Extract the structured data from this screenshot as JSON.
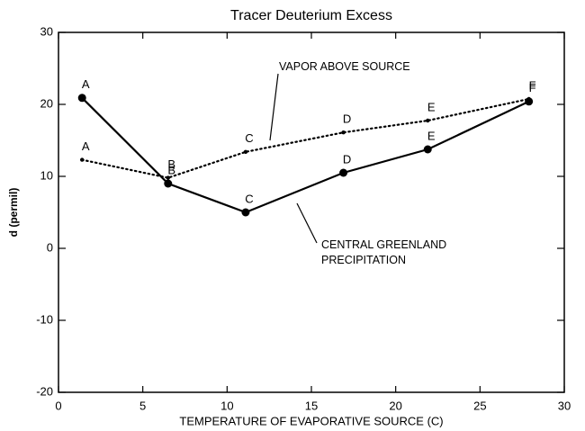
{
  "chart_data": {
    "type": "line",
    "title": "Tracer Deuterium Excess",
    "x_label": "TEMPERATURE OF EVAPORATIVE SOURCE (C)",
    "y_label": "d (permil)",
    "xlim": [
      0,
      30
    ],
    "xticks": [
      0,
      5,
      10,
      15,
      20,
      25,
      30
    ],
    "ylim": [
      -20,
      30
    ],
    "yticks": [
      -20,
      -10,
      0,
      10,
      20,
      30
    ],
    "series": [
      {
        "name": "CENTRAL GREENLAND PRECIPITATION",
        "color": "#000000",
        "style": "solid",
        "x": [
          1.4,
          6.5,
          11.1,
          16.9,
          21.9,
          27.9
        ],
        "values": [
          20.9,
          9.0,
          5.0,
          10.5,
          13.75,
          20.4
        ],
        "point_labels": [
          "A",
          "B",
          "C",
          "D",
          "E",
          "F"
        ]
      },
      {
        "name": "VAPOR ABOVE SOURCE",
        "color": "#000000",
        "style": "dotted",
        "x": [
          1.4,
          6.5,
          11.1,
          16.9,
          21.9,
          27.9
        ],
        "values": [
          12.3,
          9.8,
          13.4,
          16.1,
          17.75,
          20.75
        ],
        "point_labels": [
          "A",
          "B",
          "C",
          "D",
          "E",
          "F"
        ]
      }
    ]
  }
}
